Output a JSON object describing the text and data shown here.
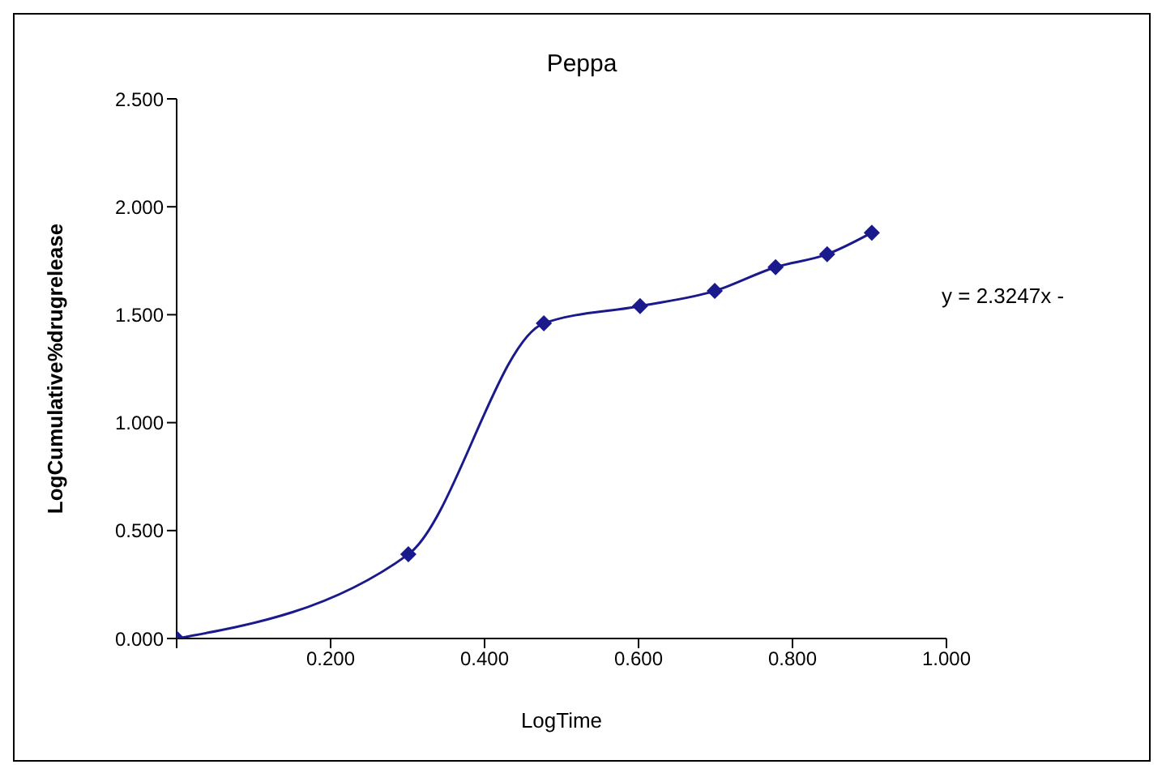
{
  "chart_data": {
    "type": "line",
    "title": "Peppa",
    "xlabel": "LogTime",
    "ylabel": "LogCumulative%drugrelease",
    "x": [
      0,
      0.301,
      0.477,
      0.602,
      0.699,
      0.778,
      0.845,
      0.903
    ],
    "series": [
      {
        "color": "#1a1a8c",
        "values": [
          0,
          0.39,
          1.46,
          1.54,
          1.61,
          1.72,
          1.78,
          1.88
        ]
      }
    ],
    "xlim": [
      0,
      1
    ],
    "xticks": [
      {
        "value": 0,
        "label": null
      },
      {
        "value": 0.2,
        "label": "0.200"
      },
      {
        "value": 0.4,
        "label": "0.400"
      },
      {
        "value": 0.6,
        "label": "0.600"
      },
      {
        "value": 0.8,
        "label": "0.800"
      },
      {
        "value": 1,
        "label": "1.000"
      }
    ],
    "ylim": [
      0,
      2.5
    ],
    "yticks": [
      {
        "value": 0,
        "label": "0.000"
      },
      {
        "value": 0.5,
        "label": "0.500"
      },
      {
        "value": 1,
        "label": "1.000"
      },
      {
        "value": 1.5,
        "label": "1.500"
      },
      {
        "value": 2,
        "label": "2.000"
      },
      {
        "value": 2.5,
        "label": "2.500"
      }
    ],
    "annotations": [
      "y = 2.3247x -"
    ],
    "marker": "diamond",
    "grid": false,
    "legend": false
  }
}
